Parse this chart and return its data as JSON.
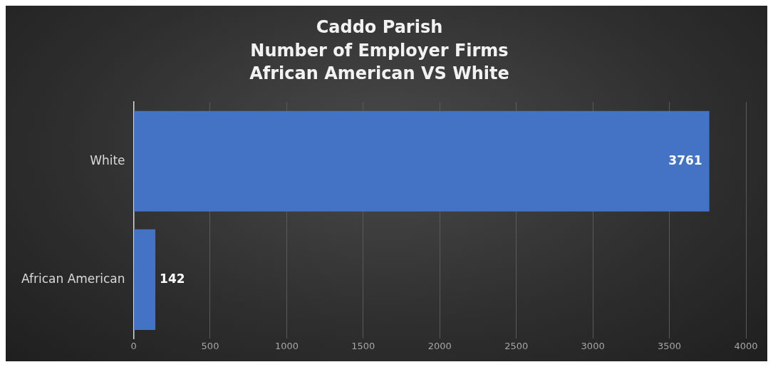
{
  "chart_data": {
    "type": "bar",
    "orientation": "horizontal",
    "title": [
      "Caddo Parish",
      "Number of Employer Firms",
      "African American VS White"
    ],
    "categories": [
      "White",
      "African American"
    ],
    "values": [
      3761,
      142
    ],
    "color": "#4472c4",
    "xlim": [
      0,
      4000
    ],
    "xticks": [
      0,
      500,
      1000,
      1500,
      2000,
      2500,
      3000,
      3500,
      4000
    ],
    "grid": "x",
    "legend": false,
    "data_labels": true
  }
}
